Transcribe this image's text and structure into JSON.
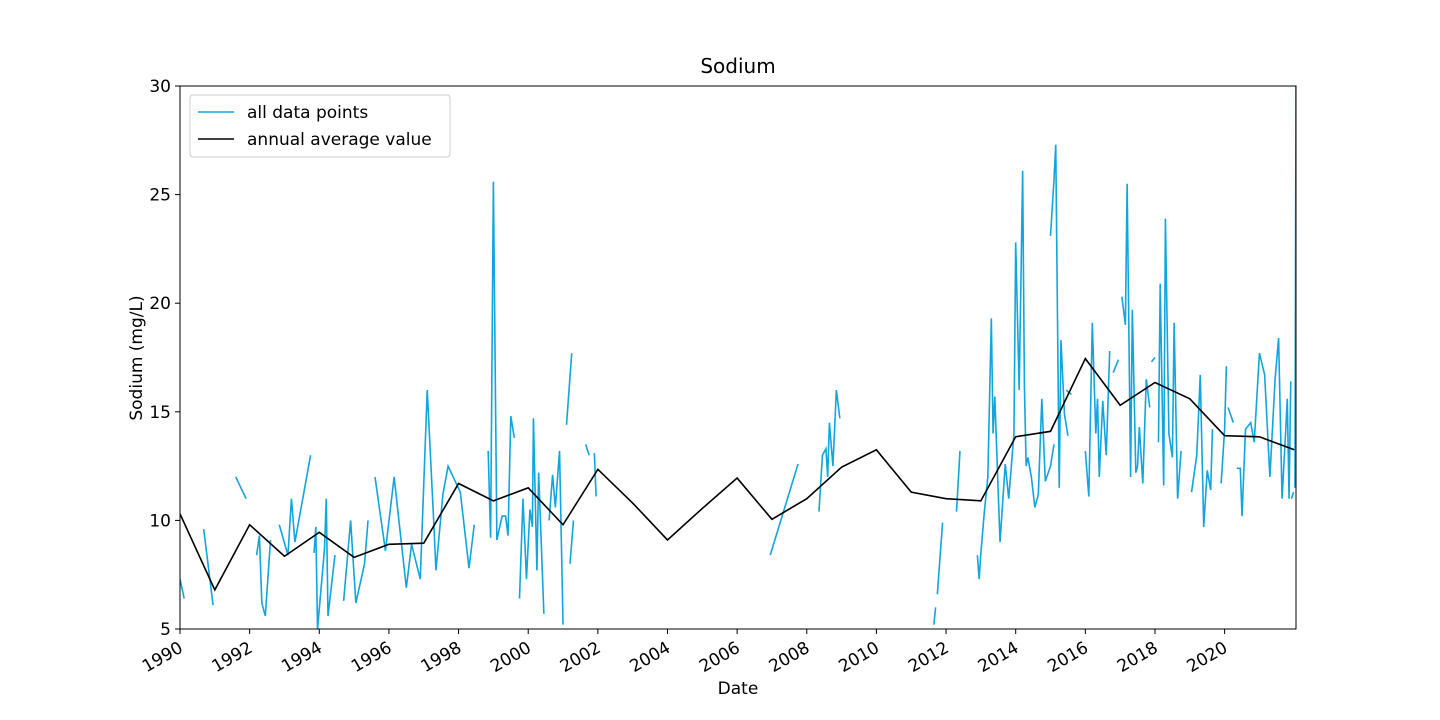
{
  "chart_data": {
    "type": "line",
    "title": "Sodium",
    "x_label": "Date",
    "y_label": "Sodium (mg/L)",
    "xlim": [
      1990,
      2022.05
    ],
    "ylim": [
      5,
      30
    ],
    "xticks": [
      1990,
      1992,
      1994,
      1996,
      1998,
      2000,
      2002,
      2004,
      2006,
      2008,
      2010,
      2012,
      2014,
      2016,
      2018,
      2020
    ],
    "yticks": [
      5,
      10,
      15,
      20,
      25,
      30
    ],
    "grid": false,
    "legend": "upper left",
    "series": [
      {
        "name": "all data points",
        "color": "#10a5dc",
        "x": [
          1990.0,
          1990.12,
          null,
          1990.68,
          1990.95,
          null,
          1991.6,
          1991.9,
          null,
          1992.2,
          1992.28,
          1992.35,
          1992.45,
          1992.6,
          null,
          1992.85,
          1993.1,
          1993.2,
          1993.3,
          1993.75,
          null,
          1993.85,
          1993.9,
          1993.95,
          1994.15,
          1994.2,
          1994.25,
          1994.45,
          null,
          1994.7,
          1994.9,
          1995.05,
          1995.3,
          1995.4,
          null,
          1995.6,
          1995.9,
          1996.15,
          1996.3,
          1996.5,
          1996.65,
          1996.9,
          1997.1,
          1997.3,
          1997.35,
          1997.55,
          1997.7,
          1998.05,
          1998.3,
          1998.45,
          null,
          1998.85,
          1998.92,
          1999.0,
          1999.1,
          1999.25,
          1999.35,
          1999.42,
          1999.5,
          1999.6,
          null,
          1999.75,
          1999.85,
          1999.95,
          2000.05,
          2000.12,
          2000.15,
          2000.25,
          2000.3,
          2000.45,
          null,
          2000.6,
          2000.7,
          2000.78,
          2000.9,
          2001.0,
          null,
          2001.1,
          2001.25,
          null,
          2001.2,
          2001.3,
          null,
          2001.65,
          2001.75,
          null,
          2001.9,
          2001.95,
          null,
          2006.95,
          2007.75,
          null,
          2008.35,
          2008.45,
          2008.55,
          2008.6,
          2008.65,
          2008.75,
          2008.85,
          2008.95,
          null,
          2011.65,
          2011.7,
          null,
          2011.75,
          2011.9,
          null,
          2012.3,
          2012.4,
          null,
          2012.9,
          2012.95,
          2013.0,
          2013.1,
          2013.2,
          2013.3,
          2013.35,
          2013.4,
          2013.55,
          2013.7,
          2013.8,
          2013.95,
          2014.0,
          2014.1,
          2014.2,
          2014.25,
          2014.3,
          2014.35,
          2014.45,
          2014.55,
          2014.65,
          2014.75,
          2014.85,
          2015.0,
          2015.1,
          null,
          2015.0,
          2015.1,
          2015.15,
          2015.25,
          2015.3,
          2015.4,
          2015.5,
          null,
          2015.45,
          2015.6,
          null,
          2016.0,
          2016.1,
          2016.2,
          2016.3,
          2016.35,
          2016.4,
          2016.5,
          2016.6,
          2016.7,
          null,
          2016.8,
          2016.95,
          null,
          2017.05,
          2017.15,
          2017.2,
          2017.3,
          2017.35,
          2017.45,
          2017.5,
          2017.55,
          2017.65,
          2017.75,
          2017.85,
          null,
          2017.9,
          2018.0,
          null,
          2018.1,
          2018.15,
          2018.25,
          2018.3,
          2018.4,
          2018.5,
          2018.55,
          2018.65,
          2018.75,
          null,
          2019.05,
          2019.2,
          2019.3,
          2019.4,
          2019.5,
          2019.6,
          2019.65,
          null,
          2019.9,
          2020.0,
          2020.05,
          null,
          2020.1,
          2020.25,
          null,
          2020.35,
          2020.45,
          2020.5,
          2020.6,
          2020.75,
          2020.85,
          2021.0,
          2021.15,
          2021.3,
          2021.45,
          2021.55,
          2021.65,
          2021.75,
          2021.8,
          2021.85,
          2021.9,
          null,
          2021.92,
          2021.98,
          null,
          2022.02,
          2022.05
        ],
        "values": [
          7.3,
          6.4,
          null,
          9.6,
          6.1,
          null,
          12.0,
          11.0,
          null,
          8.4,
          9.3,
          6.2,
          5.6,
          9.1,
          null,
          9.8,
          8.4,
          11.0,
          9.0,
          13.0,
          null,
          8.5,
          9.7,
          5.0,
          8.7,
          11.0,
          5.6,
          8.4,
          null,
          6.3,
          10.0,
          6.2,
          8.0,
          10.0,
          null,
          12.0,
          8.6,
          12.0,
          9.8,
          6.9,
          8.9,
          7.3,
          16.0,
          9.5,
          7.7,
          11.2,
          12.5,
          11.3,
          7.8,
          9.8,
          null,
          13.2,
          9.2,
          25.6,
          9.1,
          10.2,
          10.2,
          9.3,
          14.8,
          13.8,
          null,
          6.4,
          11.0,
          7.3,
          10.5,
          9.7,
          14.7,
          7.7,
          12.2,
          5.7,
          null,
          10.0,
          12.1,
          10.6,
          13.2,
          5.2,
          null,
          14.4,
          17.7,
          null,
          8.0,
          10.0,
          null,
          13.5,
          13.0,
          null,
          13.1,
          11.1,
          null,
          8.4,
          12.6,
          null,
          10.4,
          13.0,
          13.3,
          12.0,
          14.5,
          12.5,
          16.0,
          14.7,
          null,
          5.2,
          6.0,
          null,
          6.6,
          9.9,
          null,
          10.4,
          13.2,
          null,
          8.4,
          7.3,
          8.5,
          10.4,
          12.0,
          19.3,
          14.0,
          15.7,
          9.0,
          12.6,
          11.0,
          14.0,
          22.8,
          16.0,
          26.1,
          16.2,
          12.5,
          12.9,
          12.0,
          10.6,
          11.2,
          15.6,
          11.8,
          12.5,
          13.5,
          null,
          23.1,
          25.7,
          27.3,
          11.5,
          18.3,
          14.9,
          13.9,
          null,
          16.0,
          15.8,
          null,
          13.2,
          11.1,
          19.1,
          14.0,
          15.6,
          12.0,
          15.5,
          13.0,
          17.8,
          null,
          16.8,
          17.4,
          null,
          20.3,
          19.0,
          25.5,
          12.0,
          19.7,
          12.2,
          12.5,
          14.3,
          11.7,
          16.5,
          15.2,
          null,
          17.3,
          17.5,
          null,
          13.6,
          20.9,
          11.6,
          23.9,
          14.0,
          12.9,
          19.1,
          11.0,
          13.2,
          null,
          11.3,
          13.0,
          16.7,
          9.7,
          12.3,
          11.4,
          14.2,
          null,
          11.7,
          14.2,
          17.1,
          null,
          15.2,
          14.5,
          null,
          12.4,
          12.4,
          10.2,
          14.2,
          14.5,
          13.6,
          17.7,
          16.7,
          12.0,
          16.5,
          18.4,
          11.0,
          14.0,
          15.6,
          11.0,
          16.4,
          null,
          11.0,
          11.3,
          null,
          11.5,
          30
        ]
      },
      {
        "name": "annual average value",
        "color": "#000000",
        "x": [
          1990,
          1991,
          1992,
          1993,
          1994,
          1995,
          1996,
          1997,
          1998,
          1999,
          2000,
          2001,
          2002,
          2003,
          2004,
          2005,
          2006,
          2007,
          2008,
          2009,
          2010,
          2011,
          2012,
          2013,
          2014,
          2015,
          2016,
          2017,
          2018,
          2019,
          2020,
          2021,
          2022
        ],
        "values": [
          10.3,
          6.8,
          9.8,
          8.35,
          9.45,
          8.3,
          8.9,
          8.95,
          11.7,
          10.9,
          11.5,
          9.8,
          12.35,
          10.8,
          9.1,
          10.55,
          11.95,
          10.05,
          11.0,
          12.45,
          13.25,
          11.3,
          11.0,
          10.9,
          13.85,
          14.1,
          17.45,
          15.3,
          16.35,
          15.6,
          13.9,
          13.85,
          13.25
        ]
      }
    ]
  }
}
